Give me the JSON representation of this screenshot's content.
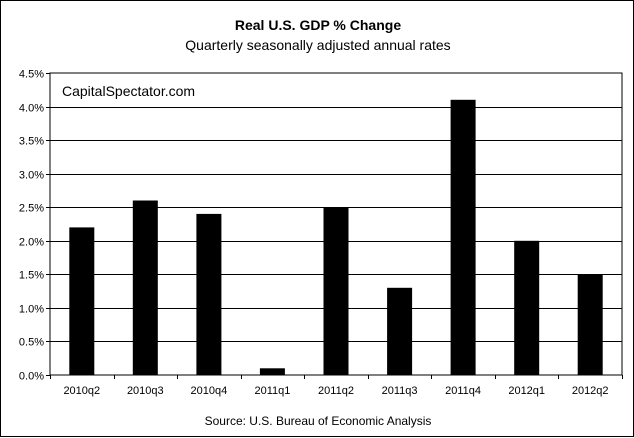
{
  "chart_data": {
    "type": "bar",
    "title": "Real U.S. GDP %  Change",
    "subtitle": "Quarterly seasonally adjusted annual rates",
    "annotation": "CapitalSpectator.com",
    "source": "Source: U.S. Bureau of Economic Analysis",
    "xlabel": "",
    "ylabel": "",
    "categories": [
      "2010q2",
      "2010q3",
      "2010q4",
      "2011q1",
      "2011q2",
      "2011q3",
      "2011q4",
      "2012q1",
      "2012q2"
    ],
    "values": [
      2.2,
      2.6,
      2.4,
      0.1,
      2.5,
      1.3,
      4.1,
      2.0,
      1.5
    ],
    "ylim": [
      0,
      4.5
    ],
    "yticks": [
      0.0,
      0.5,
      1.0,
      1.5,
      2.0,
      2.5,
      3.0,
      3.5,
      4.0,
      4.5
    ],
    "ytick_labels": [
      "0.0%",
      "0.5%",
      "1.0%",
      "1.5%",
      "2.0%",
      "2.5%",
      "3.0%",
      "3.5%",
      "4.0%",
      "4.5%"
    ],
    "grid": true,
    "legend": "none",
    "bar_color": "#000000",
    "grid_color": "#000000"
  }
}
